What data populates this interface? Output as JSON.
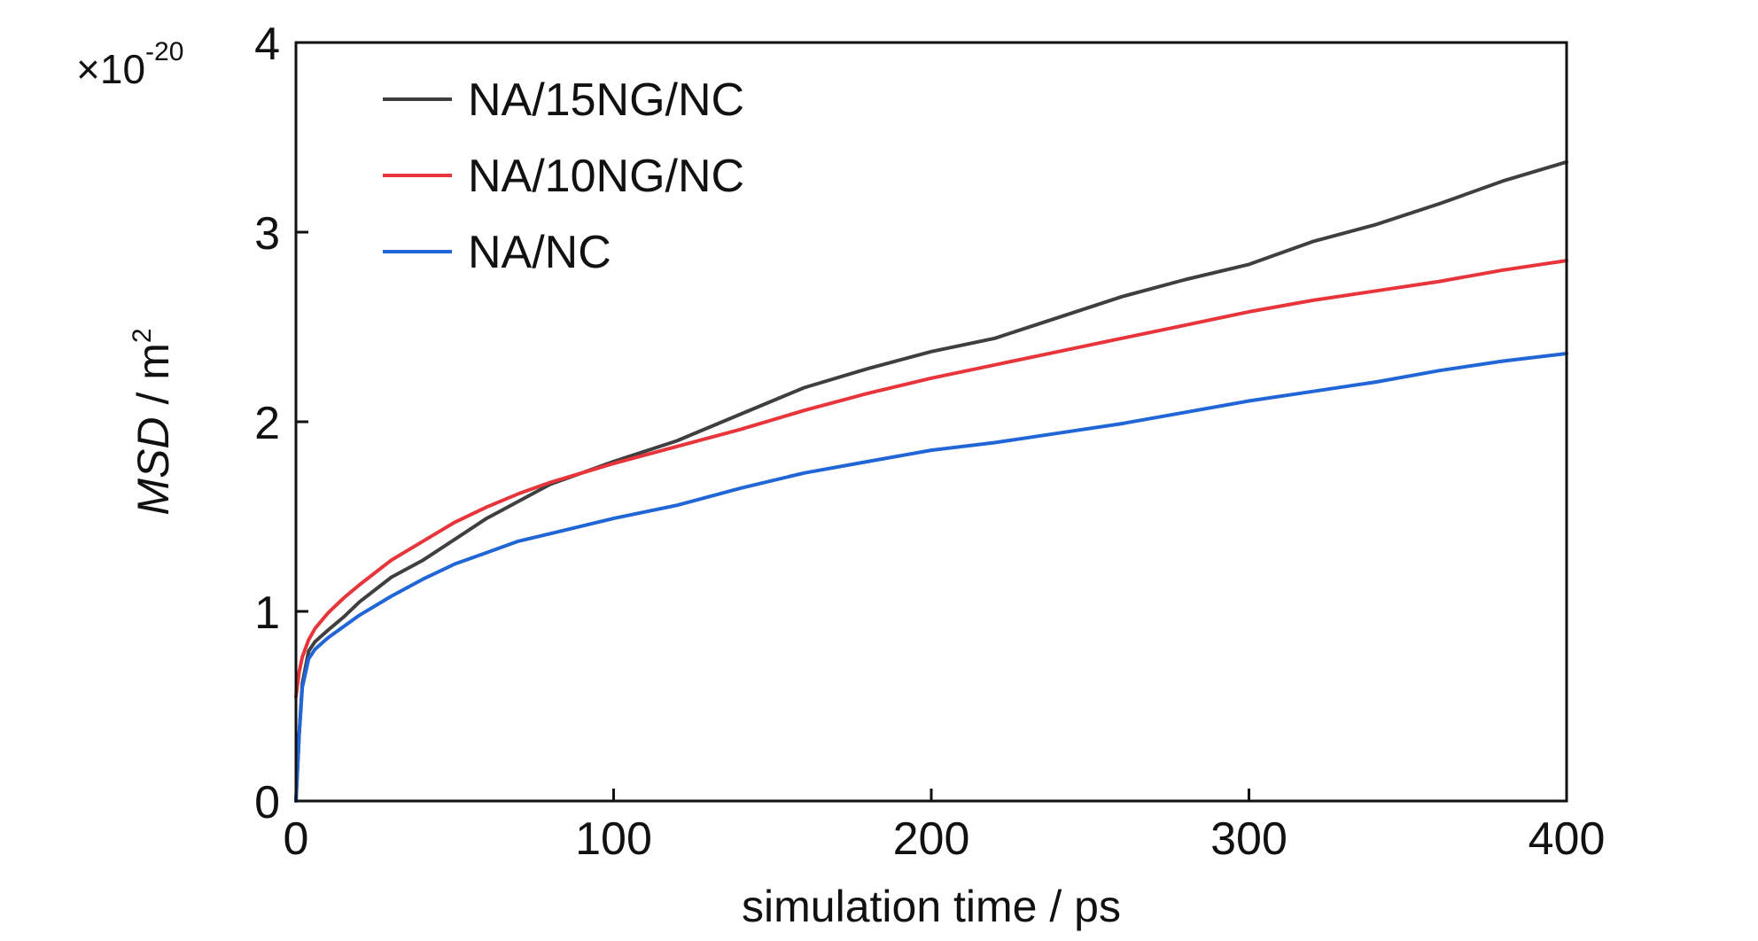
{
  "chart_data": {
    "type": "line",
    "xlabel": "simulation time / ps",
    "ylabel_parts": {
      "italic": "MSD",
      "rest": " / m",
      "sup": "2"
    },
    "y_multiplier": {
      "prefix": "×10",
      "exponent": "-20"
    },
    "xlim": [
      0,
      400
    ],
    "ylim": [
      0,
      4
    ],
    "x_ticks": [
      0,
      100,
      200,
      300,
      400
    ],
    "y_ticks": [
      0,
      1,
      2,
      3,
      4
    ],
    "grid": false,
    "legend_position": "top-left",
    "series": [
      {
        "name": "NA/15NG/NC",
        "color": "#3f3f3f",
        "x": [
          0,
          1,
          2,
          4,
          6,
          10,
          15,
          20,
          30,
          40,
          50,
          60,
          70,
          80,
          90,
          100,
          120,
          140,
          160,
          180,
          200,
          220,
          240,
          260,
          280,
          300,
          320,
          340,
          360,
          380,
          400
        ],
        "y": [
          0,
          0.35,
          0.62,
          0.79,
          0.84,
          0.9,
          0.97,
          1.05,
          1.18,
          1.27,
          1.38,
          1.49,
          1.58,
          1.67,
          1.73,
          1.79,
          1.9,
          2.04,
          2.18,
          2.28,
          2.37,
          2.44,
          2.55,
          2.66,
          2.75,
          2.83,
          2.95,
          3.04,
          3.15,
          3.27,
          3.37
        ]
      },
      {
        "name": "NA/10NG/NC",
        "color": "#e8353b",
        "x": [
          0,
          1,
          2,
          4,
          6,
          10,
          15,
          20,
          30,
          40,
          50,
          60,
          70,
          80,
          90,
          100,
          120,
          140,
          160,
          180,
          200,
          220,
          240,
          260,
          280,
          300,
          320,
          340,
          360,
          380,
          400
        ],
        "y": [
          0.55,
          0.68,
          0.76,
          0.85,
          0.91,
          0.99,
          1.07,
          1.14,
          1.27,
          1.37,
          1.47,
          1.55,
          1.62,
          1.68,
          1.73,
          1.78,
          1.87,
          1.96,
          2.06,
          2.15,
          2.23,
          2.3,
          2.37,
          2.44,
          2.51,
          2.58,
          2.64,
          2.69,
          2.74,
          2.8,
          2.85
        ]
      },
      {
        "name": "NA/NC",
        "color": "#2166d6",
        "x": [
          0,
          1,
          2,
          4,
          6,
          10,
          15,
          20,
          30,
          40,
          50,
          60,
          70,
          80,
          90,
          100,
          120,
          140,
          160,
          180,
          200,
          220,
          240,
          260,
          280,
          300,
          320,
          340,
          360,
          380,
          400
        ],
        "y": [
          0,
          0.35,
          0.6,
          0.75,
          0.8,
          0.86,
          0.92,
          0.98,
          1.08,
          1.17,
          1.25,
          1.31,
          1.37,
          1.41,
          1.45,
          1.49,
          1.56,
          1.65,
          1.73,
          1.79,
          1.85,
          1.89,
          1.94,
          1.99,
          2.05,
          2.11,
          2.16,
          2.21,
          2.27,
          2.32,
          2.36
        ]
      }
    ]
  }
}
